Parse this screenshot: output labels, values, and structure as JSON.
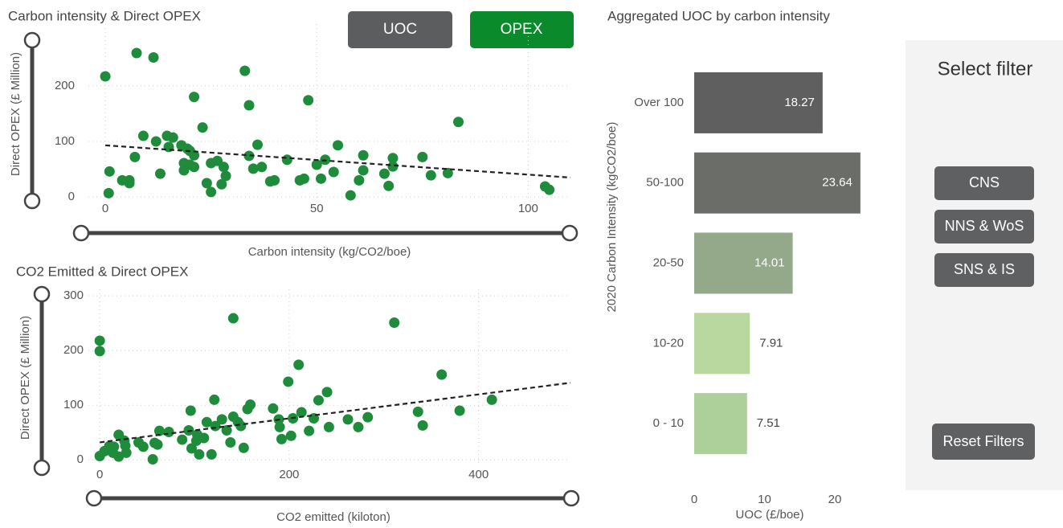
{
  "buttons": {
    "metric": [
      "UOC",
      "OPEX"
    ]
  },
  "filter_panel": {
    "title": "Select filter",
    "options": [
      "CNS",
      "NNS & WoS",
      "SNS & IS"
    ],
    "reset": "Reset Filters"
  },
  "chart_data": [
    {
      "type": "scatter",
      "title": "Carbon intensity & Direct OPEX",
      "x_label": "Carbon intensity (kg/CO2/boe)",
      "y_label": "Direct OPEX (£ Million)",
      "color": "#1e8c3a",
      "x": [
        0,
        7.4,
        11.4,
        33,
        21,
        48,
        34,
        83.5,
        23,
        9,
        14.6,
        16,
        12,
        18,
        15,
        19.4,
        20,
        21,
        36,
        55,
        34,
        61,
        7,
        75,
        68,
        18.6,
        20,
        21,
        25,
        28,
        26.5,
        35,
        37,
        43,
        52,
        50,
        68,
        1,
        13,
        18.6,
        28.5,
        54,
        61,
        66,
        77,
        81,
        4,
        5.7,
        5.7,
        24,
        27.5,
        39,
        40,
        46,
        47,
        51,
        60,
        67,
        0.8,
        25,
        58,
        104,
        105
      ],
      "values": [
        217,
        259,
        251,
        227,
        180,
        174,
        165,
        135,
        125,
        110,
        110,
        107,
        100,
        93,
        90,
        87,
        83,
        75,
        94,
        93,
        74,
        75,
        72,
        72,
        70,
        61,
        58,
        54,
        61,
        54,
        65,
        51,
        54,
        67,
        67,
        58,
        55,
        46,
        42,
        48,
        38,
        45,
        48,
        42,
        39,
        43,
        30,
        30,
        25,
        25,
        23,
        28,
        30,
        30,
        33,
        33,
        30,
        20,
        7,
        9,
        3,
        19,
        13
      ],
      "trendline": {
        "x": [
          0,
          110
        ],
        "values": [
          93,
          35
        ]
      },
      "xlim": [
        -4,
        110
      ],
      "ylim": [
        -7,
        311
      ],
      "xticks": [
        0,
        50,
        100
      ],
      "yticks": [
        0,
        100,
        200
      ],
      "grid": true
    },
    {
      "type": "scatter",
      "title": "CO2 Emitted & Direct OPEX",
      "x_label": "CO2 emitted (kiloton)",
      "y_label": "Direct OPEX (£ Million)",
      "color": "#1e8c3a",
      "x": [
        0,
        0,
        141,
        311,
        361,
        210,
        199,
        240,
        414,
        121,
        231,
        380,
        96,
        183,
        159,
        156,
        213,
        204,
        226,
        283,
        262,
        189,
        113,
        141,
        129,
        146,
        149,
        122,
        134,
        94,
        336,
        341,
        273,
        242,
        190,
        221,
        202,
        192,
        63,
        73,
        103,
        110,
        87,
        102,
        20,
        26,
        41,
        138,
        10,
        27,
        46,
        58,
        61,
        97,
        152,
        5,
        14,
        28,
        118,
        105,
        0,
        20,
        56,
        15
      ],
      "values": [
        218,
        199,
        259,
        251,
        156,
        174,
        143,
        124,
        110,
        110,
        109,
        90,
        90,
        94,
        101,
        93,
        87,
        76,
        76,
        78,
        74,
        74,
        69,
        79,
        74,
        69,
        62,
        62,
        54,
        54,
        88,
        63,
        60,
        60,
        60,
        53,
        44,
        38,
        53,
        51,
        46,
        40,
        37,
        35,
        46,
        35,
        32,
        32,
        25,
        26,
        24,
        31,
        28,
        21,
        22,
        16,
        13,
        13,
        10,
        10,
        7,
        6,
        1,
        24
      ],
      "trendline": {
        "x": [
          0,
          497
        ],
        "values": [
          32,
          141
        ]
      },
      "xlim": [
        -12,
        497
      ],
      "ylim": [
        -7,
        312
      ],
      "xticks": [
        0,
        200,
        400
      ],
      "yticks": [
        0,
        100,
        200,
        300
      ],
      "grid": true
    },
    {
      "type": "bar",
      "title": "Aggregated UOC by carbon intensity",
      "x_label": "UOC (£/boe)",
      "y_label": "2020 Carbon Intensity (kgCO2/boe)",
      "categories": [
        "Over 100",
        "50-100",
        "20-50",
        "10-20",
        "0 - 10"
      ],
      "values": [
        18.27,
        23.64,
        14.01,
        7.91,
        7.51
      ],
      "colors": [
        "#5f5f5f",
        "#6b6e68",
        "#93a98a",
        "#b8d8a0",
        "#adcf9a"
      ],
      "xlim": [
        0,
        24
      ],
      "xticks": [
        0,
        10,
        20
      ]
    }
  ]
}
